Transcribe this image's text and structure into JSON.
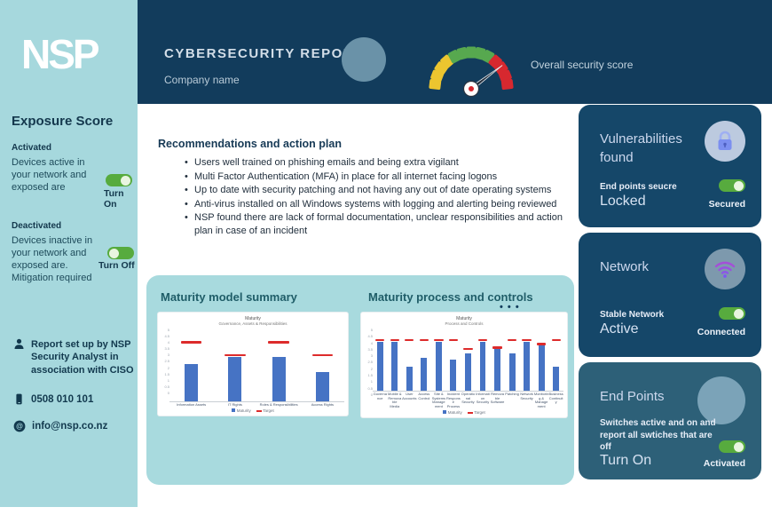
{
  "sidebar": {
    "logo": "NSP",
    "exposure_title": "Exposure Score",
    "activated": {
      "label": "Activated",
      "desc": "Devices active in your network and exposed are",
      "toggle_label": "Turn On",
      "state": "on"
    },
    "deactivated": {
      "label": "Deactivated",
      "desc": "Devices  inactive in your network and exposed are. Mitigation required",
      "toggle_label": "Turn Off",
      "state": "off"
    },
    "contact": {
      "report": "Report set up by NSP Security Analyst in association with CISO",
      "phone": "0508 010 101",
      "email": "info@nsp.co.nz"
    }
  },
  "header": {
    "title": "CYBERSECURITY REPORT",
    "subtitle": "Company name",
    "gauge_label": "Overall security score"
  },
  "gauge": {
    "segments": [
      "#ecc52f",
      "#ecc52f",
      "#ecc52f",
      "#ecc52f",
      "#57a84f",
      "#57a84f",
      "#57a84f",
      "#57a84f",
      "#57a84f",
      "#d7282f",
      "#d7282f",
      "#d7282f",
      "#d7282f"
    ],
    "needle_angle": 143
  },
  "recommendations": {
    "title": "Recommendations and action plan",
    "items": [
      "Users well trained on phishing emails and being extra vigilant",
      "Multi Factor Authentication (MFA) in place for all internet facing logons",
      "Up to date with security patching and not having any out of date operating systems",
      "Anti-virus installed on all Windows systems with logging and alerting being reviewed",
      "NSP found there are lack of formal documentation, unclear responsibilities and action plan in case of an incident"
    ]
  },
  "charts_panel": {
    "left_title": "Maturity model summary",
    "right_title": "Maturity process and controls",
    "menu_dots": "• • •"
  },
  "chart_data": [
    {
      "type": "bar",
      "title": "Maturity",
      "subtitle": "Governance, Assets & Responsibilities",
      "categories": [
        "Information Assets",
        "IT Rights",
        "Roles & Responsibilities",
        "Access Rights"
      ],
      "series": [
        {
          "name": "Maturity",
          "values": [
            2.5,
            3.0,
            3.0,
            2.0
          ]
        },
        {
          "name": "Target",
          "values": [
            4.0,
            3.1,
            4.0,
            3.1
          ]
        }
      ],
      "ylim": [
        0,
        5
      ],
      "ystep": 0.5,
      "legend": [
        "Maturity",
        "Target"
      ],
      "grid": false,
      "legend_position": "bottom"
    },
    {
      "type": "bar",
      "title": "Maturity",
      "subtitle": "Process and Controls",
      "categories": [
        "Governance",
        "Mobile & Removable Media",
        "User Accounts",
        "Access Control",
        "Site & Systems Management",
        "Incident Response Process",
        "Operational Security",
        "Information Security",
        "Removable Software",
        "Patching",
        "Network Security",
        "Monitoring & Management",
        "Business Continuity"
      ],
      "series": [
        {
          "name": "Maturity",
          "values": [
            3.9,
            3.9,
            1.9,
            2.6,
            3.9,
            2.5,
            3.0,
            3.9,
            3.4,
            3.0,
            3.9,
            3.6,
            1.9
          ]
        },
        {
          "name": "Target",
          "values": [
            4.0,
            4.0,
            4.0,
            4.0,
            4.0,
            4.0,
            3.3,
            4.0,
            3.4,
            4.0,
            4.0,
            3.7,
            4.0
          ]
        }
      ],
      "ylim": [
        0,
        5
      ],
      "ystep": 0.5,
      "legend": [
        "Maturity",
        "Target"
      ],
      "grid": false,
      "legend_position": "bottom"
    }
  ],
  "cards": [
    {
      "title": "Vulnerabilities found",
      "status_label": "End points seucre",
      "state_text": "Locked",
      "toggle_label": "Secured",
      "toggle_state": "on",
      "icon": "lock-icon"
    },
    {
      "title": "Network",
      "status_label": "Stable Network",
      "state_text": "Active",
      "toggle_label": "Connected",
      "toggle_state": "on",
      "icon": "wifi-icon"
    },
    {
      "title": "End Points",
      "status_label": "Switches active and on and report all swtiches that are off",
      "state_text": "Turn On",
      "toggle_label": "Activated",
      "toggle_state": "on",
      "icon": "endpoint-circle-icon"
    }
  ],
  "colors": {
    "sidebar_teal": "#a6d8dd",
    "header_navy": "#123c5c",
    "card_navy": "#154769",
    "card_steel": "#2d6078",
    "toggle_green": "#57ab3e",
    "bar_blue": "#4673c4",
    "target_red": "#dd2b2b"
  }
}
